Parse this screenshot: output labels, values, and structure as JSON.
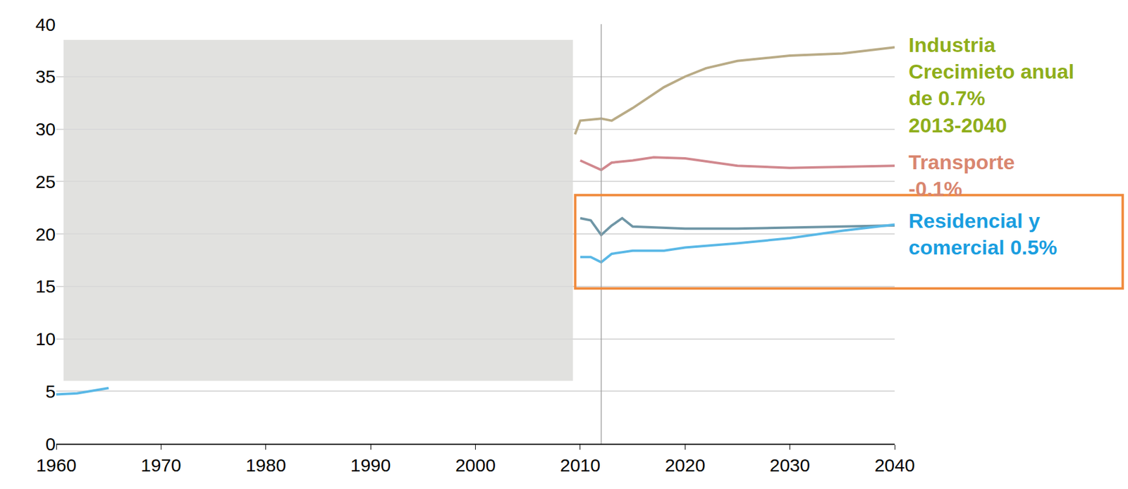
{
  "chart_data": {
    "type": "line",
    "xlim": [
      1960,
      2040
    ],
    "xticks": [
      1960,
      1970,
      1980,
      1990,
      2000,
      2010,
      2020,
      2030,
      2040
    ],
    "ylim": [
      0,
      40
    ],
    "yticks": [
      0,
      5,
      10,
      15,
      20,
      25,
      30,
      35,
      40
    ],
    "grid": true,
    "reference_line_x": 2012,
    "series": [
      {
        "color": "#b9ab86",
        "x": [
          2009.5,
          2010,
          2012,
          2013,
          2015,
          2018,
          2020,
          2022,
          2025,
          2030,
          2035,
          2040
        ],
        "values": [
          29.5,
          30.8,
          31.0,
          30.8,
          32.0,
          34.0,
          35.0,
          35.8,
          36.5,
          37.0,
          37.2,
          37.8
        ]
      },
      {
        "color": "#d1888e",
        "x": [
          2010,
          2012,
          2013,
          2015,
          2017,
          2020,
          2025,
          2030,
          2035,
          2040
        ],
        "values": [
          27.0,
          26.1,
          26.8,
          27.0,
          27.3,
          27.2,
          26.5,
          26.3,
          26.4,
          26.5
        ]
      },
      {
        "color": "#6f96a6",
        "x": [
          2010,
          2011,
          2012,
          2013,
          2014,
          2015,
          2020,
          2025,
          2030,
          2035,
          2040
        ],
        "values": [
          21.5,
          21.3,
          19.9,
          20.8,
          21.5,
          20.7,
          20.5,
          20.5,
          20.6,
          20.7,
          20.8
        ]
      },
      {
        "color": "#5ab8e6",
        "x": [
          1960,
          1962,
          1965,
          1966,
          2010,
          2011,
          2012,
          2013,
          2015,
          2018,
          2020,
          2025,
          2030,
          2035,
          2040
        ],
        "values": [
          4.7,
          4.8,
          5.3,
          null,
          17.8,
          17.8,
          17.3,
          18.1,
          18.4,
          18.4,
          18.7,
          19.1,
          19.6,
          20.3,
          20.9
        ]
      }
    ],
    "annotations": [
      {
        "text": [
          "Industria",
          "Crecimieto anual",
          "de 0.7%",
          "2013-2040"
        ],
        "y": 34.2,
        "color": "#8fae1b"
      },
      {
        "text": [
          "Transporte",
          "-0.1%"
        ],
        "y": 25.6,
        "color": "#d9866f"
      },
      {
        "text": [
          "Residencial y",
          "comercial 0.5%"
        ],
        "y": 20.0,
        "color": "#1a9ee0"
      }
    ]
  }
}
